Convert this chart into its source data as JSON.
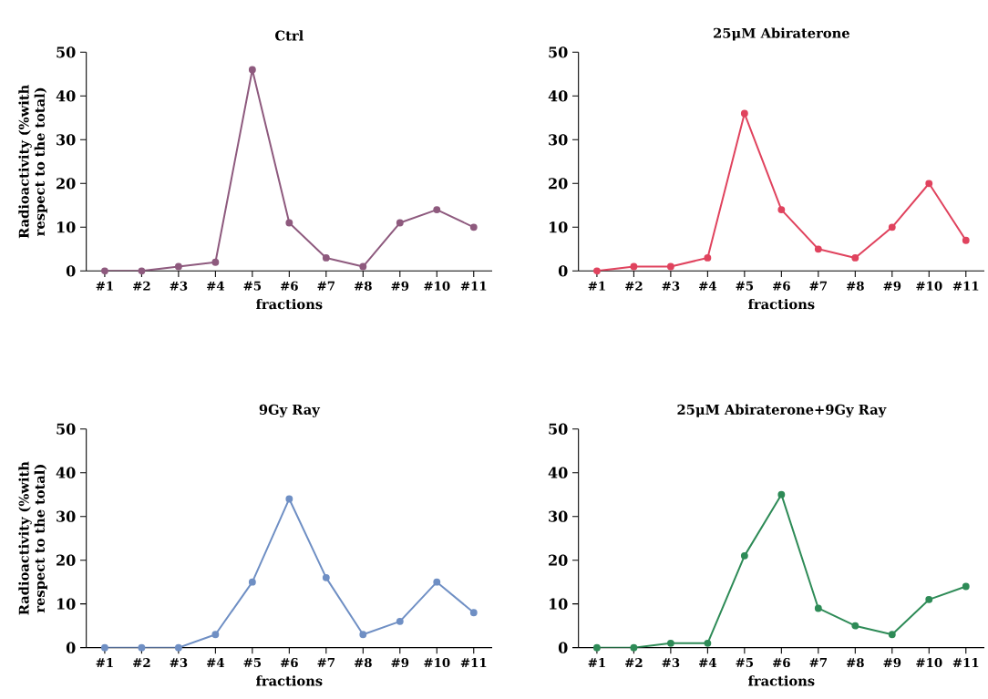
{
  "chart_data": [
    {
      "type": "line",
      "title": "Ctrl",
      "xlabel": "fractions",
      "ylabel": "Radioactivity (%with respect to the total)",
      "categories": [
        "#1",
        "#2",
        "#3",
        "#4",
        "#5",
        "#6",
        "#7",
        "#8",
        "#9",
        "#10",
        "#11"
      ],
      "ylim": [
        0,
        50
      ],
      "yticks": [
        0,
        10,
        20,
        30,
        40,
        50
      ],
      "marker": "circle",
      "line_style": "solid",
      "series": [
        {
          "color": "#8e5a7e",
          "values": [
            0,
            0,
            1,
            2,
            46,
            11,
            3,
            1,
            11,
            14,
            10
          ]
        }
      ]
    },
    {
      "type": "line",
      "title": "25μM Abiraterone",
      "xlabel": "fractions",
      "categories": [
        "#1",
        "#2",
        "#3",
        "#4",
        "#5",
        "#6",
        "#7",
        "#8",
        "#9",
        "#10",
        "#11"
      ],
      "ylim": [
        0,
        50
      ],
      "yticks": [
        0,
        10,
        20,
        30,
        40,
        50
      ],
      "marker": "circle",
      "line_style": "solid",
      "series": [
        {
          "color": "#e0435e",
          "values": [
            0,
            1,
            1,
            3,
            36,
            14,
            5,
            3,
            10,
            20,
            7
          ]
        }
      ]
    },
    {
      "type": "line",
      "title": "9Gy Ray",
      "xlabel": "fractions",
      "ylabel": "Radioactivity (%with respect to the total)",
      "categories": [
        "#1",
        "#2",
        "#3",
        "#4",
        "#5",
        "#6",
        "#7",
        "#8",
        "#9",
        "#10",
        "#11"
      ],
      "ylim": [
        0,
        50
      ],
      "yticks": [
        0,
        10,
        20,
        30,
        40,
        50
      ],
      "marker": "circle",
      "line_style": "solid",
      "series": [
        {
          "color": "#6f8fc4",
          "values": [
            0,
            0,
            0,
            3,
            15,
            34,
            16,
            3,
            6,
            15,
            8
          ]
        }
      ]
    },
    {
      "type": "line",
      "title": "25μM Abiraterone+9Gy Ray",
      "xlabel": "fractions",
      "categories": [
        "#1",
        "#2",
        "#3",
        "#4",
        "#5",
        "#6",
        "#7",
        "#8",
        "#9",
        "#10",
        "#11"
      ],
      "ylim": [
        0,
        50
      ],
      "yticks": [
        0,
        10,
        20,
        30,
        40,
        50
      ],
      "marker": "circle",
      "line_style": "solid",
      "series": [
        {
          "color": "#2e8b57",
          "values": [
            0,
            0,
            1,
            1,
            21,
            35,
            9,
            5,
            3,
            11,
            14
          ]
        }
      ]
    }
  ]
}
